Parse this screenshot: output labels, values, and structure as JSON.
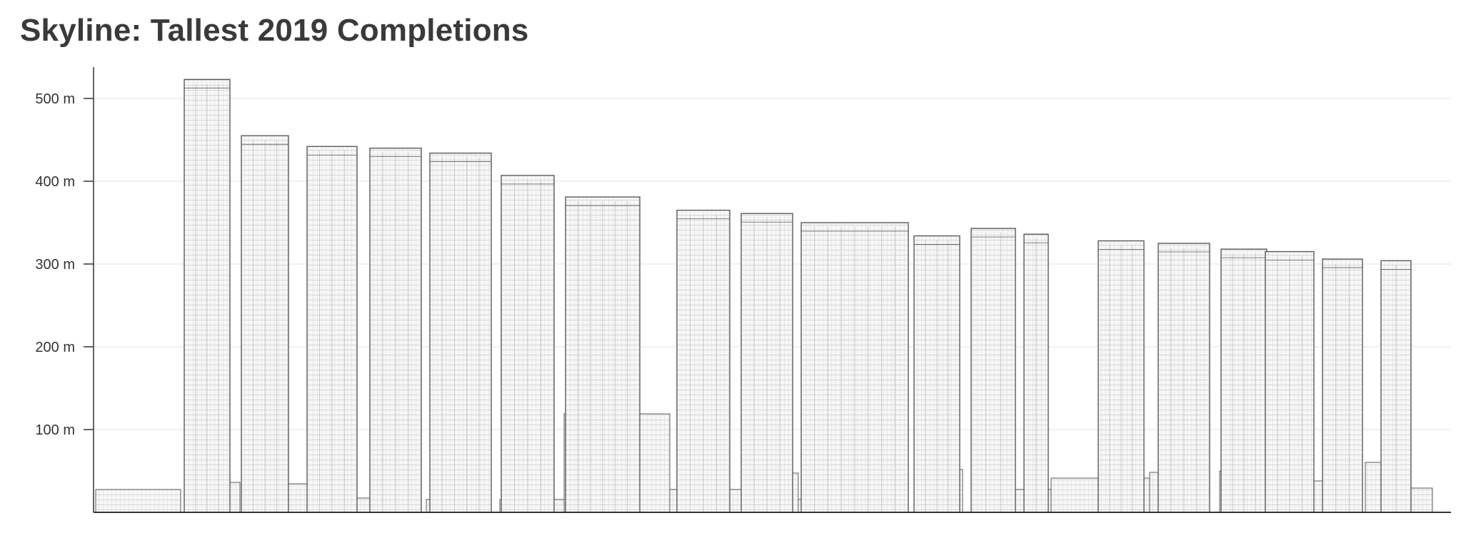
{
  "chart_data": {
    "type": "bar",
    "title": "Skyline: Tallest 2019 Completions",
    "xlabel": "",
    "ylabel": "",
    "ylim": [
      0,
      540
    ],
    "yticks": [
      100,
      200,
      300,
      400,
      500
    ],
    "ytick_labels": [
      "100 m",
      "200 m",
      "300 m",
      "400 m",
      "500 m"
    ],
    "grid": true,
    "legend": "none",
    "values": [
      523,
      455,
      442,
      440,
      434,
      407,
      381,
      365,
      361,
      350,
      334,
      343,
      336,
      328,
      325,
      318,
      315,
      306,
      304
    ],
    "colors": {
      "text": "#3a3a3a",
      "axis": "#333333",
      "grid": "#e6e6e6",
      "building_fill": "#f6f6f6",
      "building_stroke": "#5c5c5c",
      "hatch": "#c4c4c4"
    }
  }
}
